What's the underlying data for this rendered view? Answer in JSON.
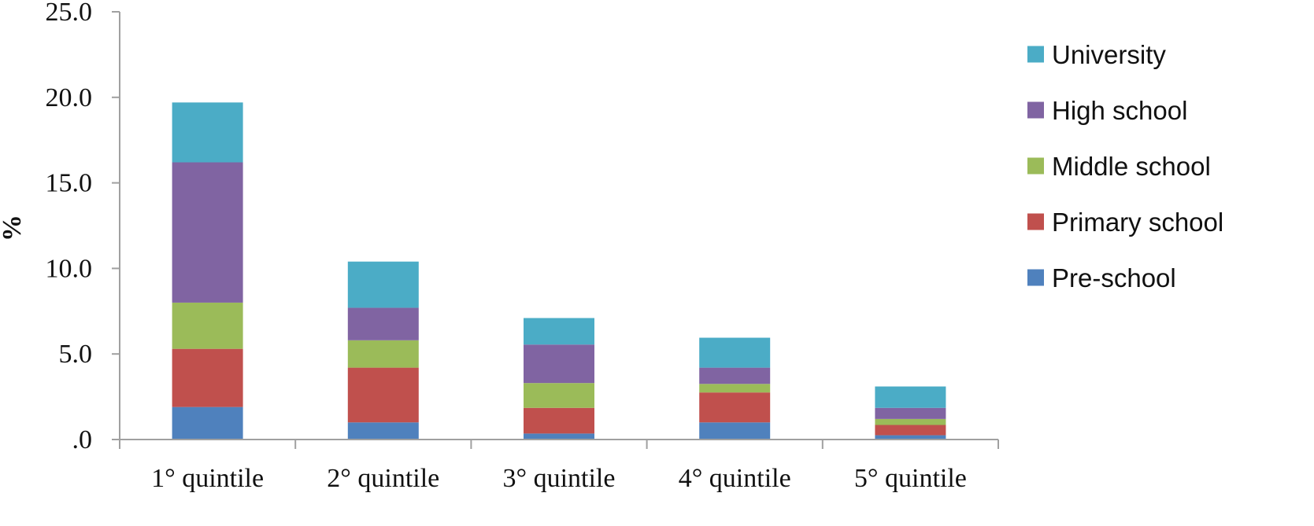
{
  "chart_data": {
    "type": "bar",
    "stacked": true,
    "categories": [
      "1° quintile",
      "2° quintile",
      "3° quintile",
      "4° quintile",
      "5° quintile"
    ],
    "series": [
      {
        "name": "Pre-school",
        "color": "#4F81BD",
        "values": [
          1.9,
          1.0,
          0.35,
          1.0,
          0.25
        ]
      },
      {
        "name": "Primary school",
        "color": "#C0504D",
        "values": [
          3.4,
          3.2,
          1.5,
          1.75,
          0.6
        ]
      },
      {
        "name": "Middle school",
        "color": "#9BBB59",
        "values": [
          2.7,
          1.6,
          1.45,
          0.5,
          0.35
        ]
      },
      {
        "name": "High school",
        "color": "#8064A2",
        "values": [
          8.2,
          1.9,
          2.25,
          0.95,
          0.65
        ]
      },
      {
        "name": "University",
        "color": "#4BACC6",
        "values": [
          3.5,
          2.7,
          1.55,
          1.75,
          1.25
        ]
      }
    ],
    "title": "",
    "xlabel": "",
    "ylabel": "%",
    "ylim": [
      0,
      25
    ],
    "yticks": [
      ".0",
      "5.0",
      "10.0",
      "15.0",
      "20.0",
      "25.0"
    ],
    "legend_position": "right",
    "legend_order": [
      "University",
      "High school",
      "Middle school",
      "Primary school",
      "Pre-school"
    ],
    "grid": false
  }
}
